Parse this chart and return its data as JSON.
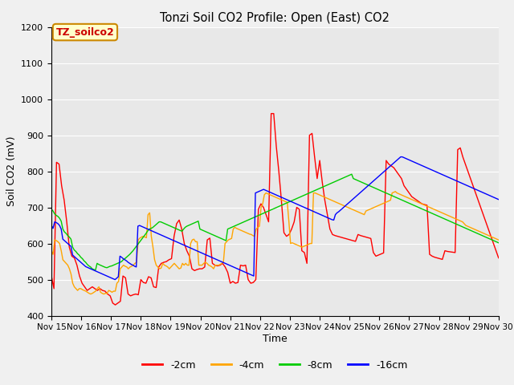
{
  "title": "Tonzi Soil CO2 Profile: Open (East) CO2",
  "ylabel": "Soil CO2 (mV)",
  "xlabel": "Time",
  "ylim": [
    400,
    1200
  ],
  "xlim": [
    0,
    15
  ],
  "x_tick_labels": [
    "Nov 15",
    "Nov 16",
    "Nov 17",
    "Nov 18",
    "Nov 19",
    "Nov 20",
    "Nov 21",
    "Nov 22",
    "Nov 23",
    "Nov 24",
    "Nov 25",
    "Nov 26",
    "Nov 27",
    "Nov 28",
    "Nov 29",
    "Nov 30"
  ],
  "legend_label": "TZ_soilco2",
  "series_labels": [
    "-2cm",
    "-4cm",
    "-8cm",
    "-16cm"
  ],
  "series_colors": [
    "#ff0000",
    "#ffa500",
    "#00cc00",
    "#0000ff"
  ],
  "plot_bg_color": "#e8e8e8",
  "fig_bg_color": "#f0f0f0",
  "grid_color": "#ffffff",
  "series_2cm": [
    510,
    475,
    825,
    820,
    760,
    720,
    660,
    590,
    565,
    560,
    540,
    510,
    490,
    480,
    470,
    475,
    480,
    475,
    470,
    475,
    470,
    468,
    460,
    455,
    435,
    430,
    435,
    440,
    510,
    505,
    460,
    455,
    458,
    460,
    458,
    500,
    492,
    490,
    508,
    505,
    480,
    478,
    535,
    545,
    548,
    550,
    555,
    558,
    620,
    655,
    665,
    640,
    600,
    580,
    565,
    530,
    525,
    528,
    530,
    530,
    535,
    610,
    615,
    545,
    540,
    538,
    540,
    545,
    535,
    520,
    490,
    495,
    490,
    492,
    540,
    538,
    540,
    500,
    490,
    492,
    500,
    695,
    710,
    700,
    680,
    660,
    960,
    960,
    870,
    800,
    720,
    630,
    620,
    625,
    640,
    660,
    700,
    695,
    580,
    575,
    545,
    900,
    905,
    840,
    780,
    830,
    770,
    720,
    680,
    640,
    625,
    622,
    620,
    618,
    616,
    614,
    612,
    610,
    608,
    606,
    625,
    622,
    620,
    618,
    616,
    614,
    575,
    565,
    568,
    571,
    574,
    830,
    820,
    815,
    810,
    800,
    790,
    780,
    760,
    750,
    740,
    730,
    725,
    720,
    715,
    710,
    708,
    706,
    570,
    565,
    562,
    560,
    558,
    556,
    580,
    578,
    577,
    576,
    575,
    860,
    865,
    840,
    820,
    800,
    780,
    760,
    740,
    720,
    700,
    680,
    660,
    640,
    620,
    600,
    580,
    560
  ],
  "series_4cm": [
    580,
    570,
    610,
    608,
    605,
    600,
    580,
    555,
    550,
    545,
    540,
    530,
    515,
    490,
    480,
    475,
    470,
    475,
    475,
    472,
    470,
    468,
    465,
    462,
    460,
    462,
    465,
    468,
    475,
    480,
    465,
    462,
    460,
    462,
    462,
    470,
    468,
    465,
    468,
    468,
    490,
    495,
    530,
    535,
    540,
    537,
    535,
    530,
    535,
    537,
    540,
    545,
    548,
    610,
    615,
    618,
    620,
    618,
    616,
    680,
    685,
    620,
    590,
    555,
    540,
    535,
    530,
    532,
    545,
    540,
    538,
    535,
    530,
    535,
    540,
    545,
    540,
    535,
    530,
    532,
    545,
    540,
    545,
    540,
    540,
    600,
    610,
    612,
    605,
    605,
    540,
    540,
    540,
    545,
    548,
    545,
    540,
    538,
    535,
    530,
    540,
    540,
    540,
    542,
    545,
    548,
    600,
    605,
    610,
    612,
    614,
    640,
    645,
    642,
    640,
    638,
    636,
    634,
    632,
    630,
    628,
    626,
    625,
    622,
    620,
    640,
    645,
    648,
    700,
    710,
    735,
    740,
    738,
    736,
    734,
    732,
    730,
    728,
    726,
    724,
    722,
    720,
    718,
    716,
    714,
    660,
    600,
    602,
    600,
    598,
    596,
    594,
    592,
    590,
    592,
    594,
    596,
    598,
    600,
    600,
    740,
    740,
    738,
    736,
    734,
    732,
    730,
    728,
    726,
    724,
    722,
    720,
    718,
    716,
    714,
    712,
    710,
    708,
    706,
    704,
    702,
    700,
    698,
    696,
    694,
    692,
    690,
    688,
    686,
    684,
    682,
    680,
    690,
    692,
    694,
    696,
    698,
    700,
    702,
    704,
    706,
    708,
    710,
    712,
    714,
    716,
    718,
    720,
    740,
    742,
    744,
    740,
    738,
    736,
    734,
    732,
    730,
    728,
    726,
    724,
    722,
    720,
    718,
    716,
    714,
    712,
    710,
    708,
    706,
    704,
    702,
    700,
    698,
    696,
    694,
    692,
    690,
    688,
    686,
    684,
    682,
    680,
    678,
    676,
    674,
    672,
    670,
    668,
    666,
    664,
    662,
    660,
    655,
    650,
    648,
    646,
    644,
    642,
    640,
    638,
    636,
    634,
    632,
    630,
    628,
    626,
    624,
    622,
    620,
    618,
    616,
    614,
    612,
    610
  ],
  "series_8cm": [
    695,
    690,
    682,
    678,
    675,
    670,
    662,
    640,
    632,
    628,
    622,
    618,
    612,
    590,
    582,
    578,
    572,
    568,
    562,
    558,
    552,
    548,
    542,
    538,
    535,
    530,
    528,
    526,
    545,
    542,
    540,
    538,
    536,
    534,
    533,
    535,
    537,
    538,
    540,
    542,
    544,
    546,
    548,
    550,
    555,
    558,
    562,
    566,
    570,
    575,
    580,
    586,
    592,
    598,
    604,
    610,
    616,
    622,
    628,
    635,
    640,
    642,
    644,
    648,
    652,
    656,
    660,
    660,
    658,
    656,
    654,
    652,
    650,
    648,
    646,
    644,
    642,
    640,
    638,
    636,
    634,
    640,
    645,
    648,
    650,
    652,
    654,
    656,
    658,
    660,
    662,
    640,
    638,
    636,
    634,
    632,
    630,
    628,
    626,
    624,
    622,
    620,
    618,
    616,
    614,
    612,
    610,
    608,
    640,
    642,
    644,
    646,
    648,
    650,
    652,
    654,
    656,
    658,
    660,
    662,
    664,
    666,
    668,
    670,
    672,
    674,
    676,
    678,
    680,
    682,
    684,
    686,
    688,
    690,
    692,
    694,
    696,
    698,
    700,
    702,
    704,
    706,
    708,
    710,
    712,
    714,
    716,
    718,
    720,
    722,
    724,
    726,
    728,
    730,
    732,
    734,
    736,
    738,
    740,
    742,
    744,
    746,
    748,
    750,
    752,
    754,
    756,
    758,
    760,
    762,
    764,
    766,
    768,
    770,
    772,
    774,
    776,
    778,
    780,
    782,
    784,
    786,
    788,
    790,
    792,
    780,
    778,
    776,
    774,
    772,
    770,
    768,
    766,
    764,
    762,
    760,
    758,
    756,
    754,
    752,
    750,
    748,
    746,
    744,
    742,
    740,
    738,
    736,
    734,
    732,
    730,
    728,
    726,
    724,
    722,
    720,
    718,
    716,
    714,
    712,
    710,
    708,
    706,
    704,
    702,
    700,
    698,
    696,
    694,
    692,
    690,
    688,
    686,
    684,
    682,
    680,
    678,
    676,
    674,
    672,
    670,
    668,
    666,
    664,
    662,
    660,
    658,
    656,
    654,
    652,
    650,
    648,
    646,
    644,
    642,
    640,
    638,
    636,
    634,
    632,
    630,
    628,
    626,
    624,
    622,
    620,
    618,
    616,
    614,
    612,
    610,
    608,
    606,
    604,
    602
  ],
  "series_16cm": [
    650,
    642,
    660,
    658,
    655,
    650,
    640,
    612,
    608,
    604,
    600,
    596,
    592,
    568,
    564,
    560,
    556,
    552,
    548,
    544,
    540,
    536,
    534,
    532,
    530,
    528,
    526,
    524,
    522,
    520,
    518,
    516,
    514,
    512,
    510,
    508,
    506,
    504,
    502,
    500,
    504,
    508,
    565,
    562,
    558,
    555,
    552,
    548,
    545,
    542,
    540,
    537,
    535,
    648,
    650,
    648,
    646,
    644,
    642,
    640,
    638,
    636,
    634,
    632,
    630,
    628,
    626,
    624,
    622,
    620,
    618,
    616,
    614,
    612,
    610,
    608,
    606,
    604,
    602,
    600,
    598,
    596,
    594,
    592,
    590,
    588,
    586,
    584,
    582,
    580,
    578,
    576,
    574,
    572,
    570,
    568,
    566,
    564,
    562,
    560,
    558,
    556,
    554,
    552,
    550,
    548,
    546,
    544,
    542,
    540,
    538,
    536,
    534,
    532,
    530,
    528,
    526,
    524,
    522,
    520,
    518,
    516,
    514,
    512,
    510,
    740,
    742,
    744,
    746,
    748,
    750,
    748,
    746,
    744,
    742,
    740,
    738,
    736,
    734,
    732,
    730,
    728,
    726,
    724,
    722,
    720,
    718,
    716,
    714,
    712,
    710,
    708,
    706,
    704,
    702,
    700,
    698,
    696,
    694,
    692,
    690,
    688,
    686,
    684,
    682,
    680,
    678,
    676,
    674,
    672,
    670,
    668,
    666,
    665,
    680,
    685,
    688,
    692,
    696,
    700,
    704,
    708,
    712,
    716,
    720,
    724,
    728,
    732,
    736,
    740,
    744,
    748,
    752,
    756,
    760,
    764,
    768,
    772,
    776,
    780,
    784,
    788,
    792,
    796,
    800,
    804,
    808,
    812,
    816,
    820,
    824,
    828,
    832,
    836,
    840,
    840,
    838,
    836,
    834,
    832,
    830,
    828,
    826,
    824,
    822,
    820,
    818,
    816,
    814,
    812,
    810,
    808,
    806,
    804,
    802,
    800,
    798,
    796,
    794,
    792,
    790,
    788,
    786,
    784,
    782,
    780,
    778,
    776,
    774,
    772,
    770,
    768,
    766,
    764,
    762,
    760,
    758,
    756,
    754,
    752,
    750,
    748,
    746,
    744,
    742,
    740,
    738,
    736,
    734,
    732,
    730,
    728,
    726,
    724,
    722
  ]
}
